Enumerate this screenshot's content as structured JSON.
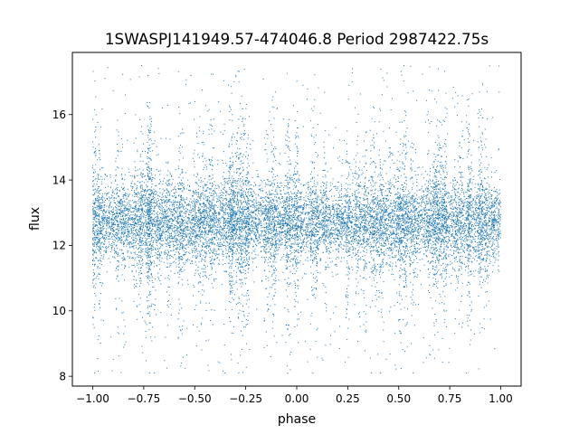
{
  "chart_data": {
    "type": "scatter",
    "title": "1SWASPJ141949.57-474046.8 Period 2987422.75s",
    "xlabel": "phase",
    "ylabel": "flux",
    "xlim": [
      -1.1,
      1.1
    ],
    "ylim": [
      7.7,
      17.9
    ],
    "xticks": [
      -1.0,
      -0.75,
      -0.5,
      -0.25,
      0.0,
      0.25,
      0.5,
      0.75,
      1.0
    ],
    "xtick_labels": [
      "−1.00",
      "−0.75",
      "−0.50",
      "−0.25",
      "0.00",
      "0.25",
      "0.50",
      "0.75",
      "1.00"
    ],
    "yticks": [
      8,
      10,
      12,
      14,
      16
    ],
    "ytick_labels": [
      "8",
      "10",
      "12",
      "14",
      "16"
    ],
    "grid": false,
    "marker_color": "#1f77b4",
    "series": [
      {
        "phase_range": [
          -1.0,
          1.0
        ],
        "flux_center": 12.7,
        "flux_core_band": [
          11.5,
          14.2
        ],
        "flux_extent": [
          8.1,
          17.5
        ],
        "dense_clusters_phase": [
          -0.85,
          -0.72,
          -0.3,
          -0.05,
          0.25,
          0.42,
          0.65,
          0.85
        ]
      }
    ]
  }
}
